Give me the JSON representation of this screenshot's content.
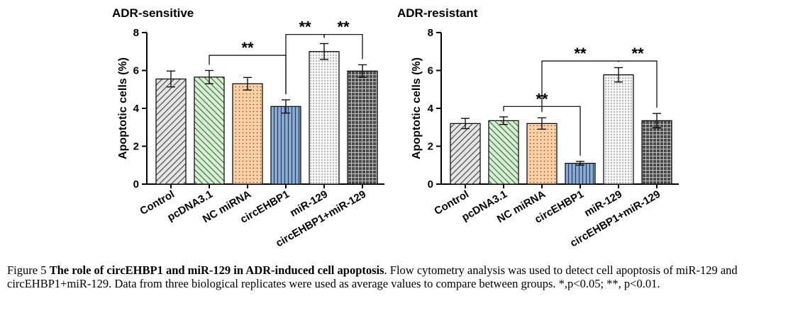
{
  "chart_data": [
    {
      "type": "bar",
      "title": "ADR-sensitive",
      "ylabel": "Apoptotic cells (%)",
      "xlabel": "",
      "ylim": [
        0,
        8
      ],
      "yticks": [
        0,
        2,
        4,
        6,
        8
      ],
      "categories": [
        "Control",
        "pcDNA3.1",
        "NC miRNA",
        "circEHBP1",
        "miR-129",
        "circEHBP1+miR-129"
      ],
      "values": [
        5.55,
        5.65,
        5.3,
        4.1,
        7.0,
        5.97
      ],
      "errors": [
        0.42,
        0.35,
        0.33,
        0.35,
        0.42,
        0.33
      ],
      "fills": [
        "diagonal-gray",
        "diagonal-green",
        "dots-orange",
        "vertical-blue",
        "dots-white",
        "grid-dark"
      ],
      "significance": [
        {
          "from": 1,
          "to": 3,
          "label": "**"
        },
        {
          "from": 3,
          "to": 4,
          "label": "**"
        },
        {
          "from": 4,
          "to": 5,
          "label": "**"
        }
      ]
    },
    {
      "type": "bar",
      "title": "ADR-resistant",
      "ylabel": "Apoptotic cells (%)",
      "xlabel": "",
      "ylim": [
        0,
        8
      ],
      "yticks": [
        0,
        2,
        4,
        6,
        8
      ],
      "categories": [
        "Control",
        "pcDNA3.1",
        "NC miRNA",
        "circEHBP1",
        "miR-129",
        "circEHBP1+miR-129"
      ],
      "values": [
        3.2,
        3.35,
        3.2,
        1.1,
        5.77,
        3.35
      ],
      "errors": [
        0.27,
        0.2,
        0.3,
        0.1,
        0.38,
        0.38
      ],
      "fills": [
        "diagonal-gray",
        "diagonal-green",
        "dots-orange",
        "vertical-blue",
        "dots-white",
        "grid-dark"
      ],
      "significance": [
        {
          "from": 1,
          "to": 3,
          "label": "**"
        },
        {
          "from": 2,
          "to": 4,
          "label": "**"
        },
        {
          "from": 4,
          "to": 5,
          "label": "**"
        }
      ]
    }
  ],
  "caption": {
    "prefix": "Figure 5 ",
    "bold": "The role of circEHBP1 and miR-129 in ADR-induced cell apoptosis",
    "rest": ". Flow cytometry analysis was used to detect cell apoptosis of miR-129 and circEHBP1+miR-129. Data from three biological replicates were used as average values to compare between groups. *,p<0.05; **, p<0.01."
  }
}
